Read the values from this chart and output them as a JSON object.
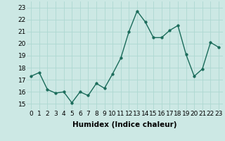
{
  "x": [
    0,
    1,
    2,
    3,
    4,
    5,
    6,
    7,
    8,
    9,
    10,
    11,
    12,
    13,
    14,
    15,
    16,
    17,
    18,
    19,
    20,
    21,
    22,
    23
  ],
  "y": [
    17.3,
    17.6,
    16.2,
    15.9,
    16.0,
    15.1,
    16.0,
    15.7,
    16.7,
    16.3,
    17.5,
    18.8,
    21.0,
    22.7,
    21.8,
    20.5,
    20.5,
    21.1,
    21.5,
    19.1,
    17.3,
    17.9,
    20.1,
    19.7
  ],
  "line_color": "#1a6b5a",
  "marker_color": "#1a6b5a",
  "bg_color": "#cce8e4",
  "grid_color": "#aed8d2",
  "xlabel": "Humidex (Indice chaleur)",
  "xlim": [
    -0.5,
    23.5
  ],
  "ylim": [
    14.5,
    23.5
  ],
  "yticks": [
    15,
    16,
    17,
    18,
    19,
    20,
    21,
    22,
    23
  ],
  "xticks": [
    0,
    1,
    2,
    3,
    4,
    5,
    6,
    7,
    8,
    9,
    10,
    11,
    12,
    13,
    14,
    15,
    16,
    17,
    18,
    19,
    20,
    21,
    22,
    23
  ],
  "xlabel_fontsize": 7.5,
  "tick_fontsize": 6.5,
  "linewidth": 1.0,
  "markersize": 2.5
}
